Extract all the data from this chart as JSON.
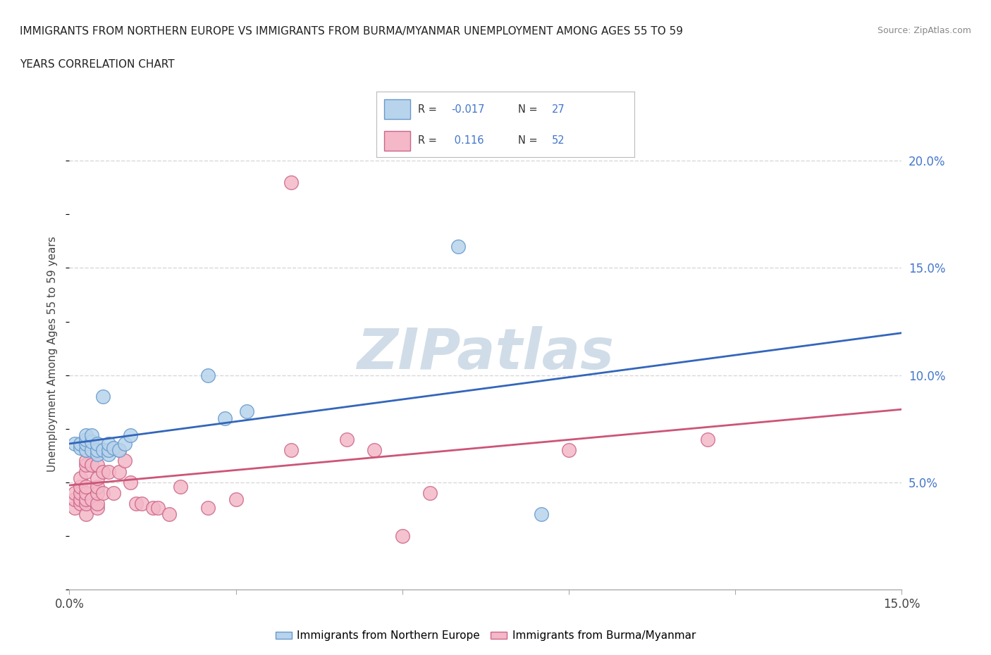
{
  "title_line1": "IMMIGRANTS FROM NORTHERN EUROPE VS IMMIGRANTS FROM BURMA/MYANMAR UNEMPLOYMENT AMONG AGES 55 TO 59",
  "title_line2": "YEARS CORRELATION CHART",
  "source": "Source: ZipAtlas.com",
  "ylabel": "Unemployment Among Ages 55 to 59 years",
  "xlim": [
    0.0,
    0.15
  ],
  "ylim": [
    0.0,
    0.22
  ],
  "blue_R": -0.017,
  "blue_N": 27,
  "pink_R": 0.116,
  "pink_N": 52,
  "blue_fill_color": "#b8d4ec",
  "pink_fill_color": "#f4b8c8",
  "blue_edge_color": "#6699cc",
  "pink_edge_color": "#cc6688",
  "blue_line_color": "#3366bb",
  "pink_line_color": "#cc5577",
  "right_tick_color": "#4477cc",
  "watermark_color": "#d0dde8",
  "grid_color": "#d8d8d8",
  "background_color": "#ffffff",
  "blue_scatter_x": [
    0.001,
    0.002,
    0.002,
    0.003,
    0.003,
    0.003,
    0.003,
    0.004,
    0.004,
    0.004,
    0.005,
    0.005,
    0.005,
    0.006,
    0.006,
    0.007,
    0.007,
    0.007,
    0.008,
    0.009,
    0.01,
    0.011,
    0.025,
    0.028,
    0.032,
    0.07,
    0.085
  ],
  "blue_scatter_y": [
    0.068,
    0.066,
    0.068,
    0.065,
    0.068,
    0.07,
    0.072,
    0.065,
    0.069,
    0.072,
    0.063,
    0.065,
    0.068,
    0.065,
    0.09,
    0.063,
    0.065,
    0.068,
    0.066,
    0.065,
    0.068,
    0.072,
    0.1,
    0.08,
    0.083,
    0.16,
    0.035
  ],
  "pink_scatter_x": [
    0.001,
    0.001,
    0.001,
    0.002,
    0.002,
    0.002,
    0.002,
    0.002,
    0.003,
    0.003,
    0.003,
    0.003,
    0.003,
    0.003,
    0.003,
    0.003,
    0.003,
    0.004,
    0.004,
    0.004,
    0.005,
    0.005,
    0.005,
    0.005,
    0.005,
    0.005,
    0.006,
    0.006,
    0.006,
    0.007,
    0.007,
    0.008,
    0.009,
    0.009,
    0.01,
    0.011,
    0.012,
    0.013,
    0.015,
    0.016,
    0.018,
    0.02,
    0.025,
    0.03,
    0.04,
    0.05,
    0.055,
    0.06,
    0.065,
    0.09,
    0.115,
    0.04
  ],
  "pink_scatter_y": [
    0.038,
    0.042,
    0.045,
    0.04,
    0.042,
    0.045,
    0.048,
    0.052,
    0.035,
    0.04,
    0.042,
    0.045,
    0.048,
    0.055,
    0.058,
    0.06,
    0.065,
    0.042,
    0.058,
    0.068,
    0.038,
    0.04,
    0.045,
    0.048,
    0.052,
    0.058,
    0.045,
    0.055,
    0.065,
    0.055,
    0.065,
    0.045,
    0.055,
    0.065,
    0.06,
    0.05,
    0.04,
    0.04,
    0.038,
    0.038,
    0.035,
    0.048,
    0.038,
    0.042,
    0.065,
    0.07,
    0.065,
    0.025,
    0.045,
    0.065,
    0.07,
    0.19
  ]
}
